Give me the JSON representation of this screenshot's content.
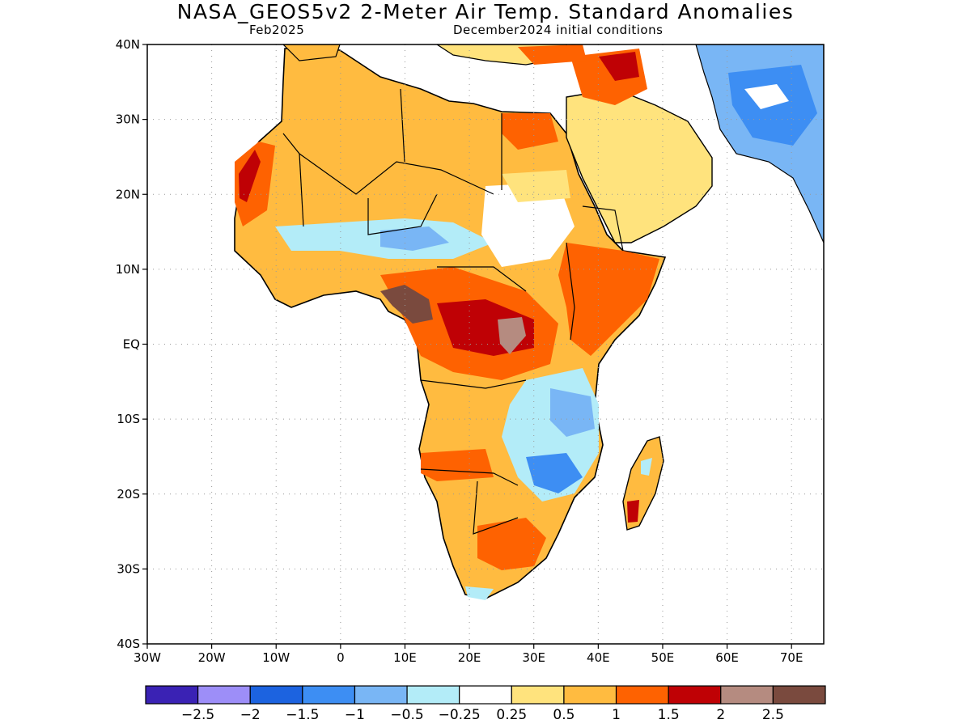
{
  "title": "NASA_GEOS5v2 2-Meter Air Temp. Standard Anomalies",
  "subtitle_left": "Feb2025",
  "subtitle_right": "December2024 initial conditions",
  "map": {
    "lat_ticks": [
      "40N",
      "30N",
      "20N",
      "10N",
      "EQ",
      "10S",
      "20S",
      "30S",
      "40S"
    ],
    "lon_ticks": [
      "30W",
      "20W",
      "10W",
      "0",
      "10E",
      "20E",
      "30E",
      "40E",
      "50E",
      "60E",
      "70E"
    ],
    "lat_range": [
      -40,
      40
    ],
    "lon_range": [
      -30,
      75
    ],
    "grid": "dotted"
  },
  "colorbar": {
    "colors": [
      "#3a22b4",
      "#9d8ef8",
      "#1c63e0",
      "#3d8ef3",
      "#79b6f5",
      "#b3ecf8",
      "#ffffff",
      "#ffe37d",
      "#ffbb40",
      "#fe6201",
      "#bf0105",
      "#b58b80",
      "#7a4a3e"
    ],
    "labels": [
      "−2.5",
      "−2",
      "−1.5",
      "−1",
      "−0.5",
      "−0.25",
      "0.25",
      "0.5",
      "1",
      "1.5",
      "2",
      "2.5"
    ]
  },
  "colors": {
    "land_warm": "#ffbb40",
    "land_hot": "#fe6201",
    "land_very_hot": "#bf0105",
    "land_extreme": "#7a4a3e",
    "cool_light": "#b3ecf8",
    "cool": "#79b6f5",
    "cold": "#3d8ef3",
    "neutral": "#ffffff",
    "mild_warm": "#ffe37d"
  }
}
